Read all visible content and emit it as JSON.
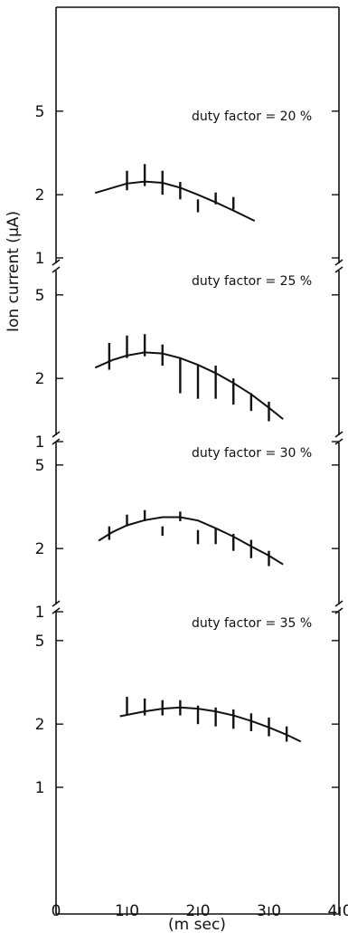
{
  "chart_data": {
    "type": "scatter",
    "ylabel": "Ion current (μA)",
    "xlabel": "(m sec)",
    "x_ticks": [
      "0",
      "1.0",
      "2.0",
      "3.0",
      "4.0"
    ],
    "xlim": [
      0,
      4.0
    ],
    "y_scale": "log",
    "ylim": [
      1,
      5
    ],
    "panels": [
      {
        "label": "duty factor = 20 %",
        "y_ticks": [
          "5",
          "2",
          "1"
        ],
        "points": [
          {
            "x": 1.0,
            "y_low": 2.1,
            "y_high": 2.6
          },
          {
            "x": 1.25,
            "y_low": 2.2,
            "y_high": 2.8
          },
          {
            "x": 1.5,
            "y_low": 2.0,
            "y_high": 2.6
          },
          {
            "x": 1.75,
            "y_low": 1.9,
            "y_high": 2.3
          },
          {
            "x": 2.0,
            "y_low": 1.65,
            "y_high": 1.9
          },
          {
            "x": 2.25,
            "y_low": 1.8,
            "y_high": 2.05
          },
          {
            "x": 2.5,
            "y_low": 1.7,
            "y_high": 1.95
          }
        ],
        "fit": [
          {
            "x": 0.55,
            "y": 2.04
          },
          {
            "x": 0.8,
            "y": 2.16
          },
          {
            "x": 1.0,
            "y": 2.26
          },
          {
            "x": 1.25,
            "y": 2.31
          },
          {
            "x": 1.5,
            "y": 2.28
          },
          {
            "x": 1.75,
            "y": 2.16
          },
          {
            "x": 2.0,
            "y": 2.0
          },
          {
            "x": 2.25,
            "y": 1.84
          },
          {
            "x": 2.5,
            "y": 1.68
          },
          {
            "x": 2.8,
            "y": 1.5
          }
        ]
      },
      {
        "label": "duty factor = 25 %",
        "y_ticks": [
          "5",
          "2",
          "1"
        ],
        "points": [
          {
            "x": 0.75,
            "y_low": 2.2,
            "y_high": 2.95
          },
          {
            "x": 1.0,
            "y_low": 2.5,
            "y_high": 3.2
          },
          {
            "x": 1.25,
            "y_low": 2.55,
            "y_high": 3.25
          },
          {
            "x": 1.5,
            "y_low": 2.3,
            "y_high": 2.9
          },
          {
            "x": 1.75,
            "y_low": 1.7,
            "y_high": 2.5
          },
          {
            "x": 2.0,
            "y_low": 1.6,
            "y_high": 2.3
          },
          {
            "x": 2.25,
            "y_low": 1.6,
            "y_high": 2.3
          },
          {
            "x": 2.5,
            "y_low": 1.5,
            "y_high": 2.0
          },
          {
            "x": 2.75,
            "y_low": 1.4,
            "y_high": 1.7
          },
          {
            "x": 3.0,
            "y_low": 1.25,
            "y_high": 1.55
          }
        ],
        "fit": [
          {
            "x": 0.55,
            "y": 2.25
          },
          {
            "x": 0.8,
            "y": 2.45
          },
          {
            "x": 1.0,
            "y": 2.57
          },
          {
            "x": 1.25,
            "y": 2.66
          },
          {
            "x": 1.5,
            "y": 2.63
          },
          {
            "x": 1.75,
            "y": 2.5
          },
          {
            "x": 2.0,
            "y": 2.32
          },
          {
            "x": 2.25,
            "y": 2.12
          },
          {
            "x": 2.5,
            "y": 1.9
          },
          {
            "x": 2.75,
            "y": 1.68
          },
          {
            "x": 3.0,
            "y": 1.45
          },
          {
            "x": 3.2,
            "y": 1.28
          }
        ]
      },
      {
        "label": "duty factor = 30 %",
        "y_ticks": [
          "5",
          "2",
          "1"
        ],
        "points": [
          {
            "x": 0.75,
            "y_low": 2.2,
            "y_high": 2.55
          },
          {
            "x": 1.0,
            "y_low": 2.55,
            "y_high": 2.9
          },
          {
            "x": 1.25,
            "y_low": 2.7,
            "y_high": 3.05
          },
          {
            "x": 1.5,
            "y_low": 2.3,
            "y_high": 2.55
          },
          {
            "x": 1.75,
            "y_low": 2.7,
            "y_high": 3.0
          },
          {
            "x": 2.0,
            "y_low": 2.1,
            "y_high": 2.45
          },
          {
            "x": 2.25,
            "y_low": 2.1,
            "y_high": 2.5
          },
          {
            "x": 2.5,
            "y_low": 1.95,
            "y_high": 2.35
          },
          {
            "x": 2.75,
            "y_low": 1.8,
            "y_high": 2.2
          },
          {
            "x": 3.0,
            "y_low": 1.65,
            "y_high": 1.95
          }
        ],
        "fit": [
          {
            "x": 0.6,
            "y": 2.18
          },
          {
            "x": 0.8,
            "y": 2.4
          },
          {
            "x": 1.0,
            "y": 2.58
          },
          {
            "x": 1.25,
            "y": 2.73
          },
          {
            "x": 1.5,
            "y": 2.82
          },
          {
            "x": 1.75,
            "y": 2.82
          },
          {
            "x": 2.0,
            "y": 2.72
          },
          {
            "x": 2.25,
            "y": 2.5
          },
          {
            "x": 2.5,
            "y": 2.28
          },
          {
            "x": 2.75,
            "y": 2.05
          },
          {
            "x": 3.0,
            "y": 1.85
          },
          {
            "x": 3.2,
            "y": 1.68
          }
        ]
      },
      {
        "label": "duty factor = 35 %",
        "y_ticks": [
          "5",
          "2",
          "1"
        ],
        "points": [
          {
            "x": 1.0,
            "y_low": 2.2,
            "y_high": 2.7
          },
          {
            "x": 1.25,
            "y_low": 2.2,
            "y_high": 2.65
          },
          {
            "x": 1.5,
            "y_low": 2.2,
            "y_high": 2.6
          },
          {
            "x": 1.75,
            "y_low": 2.2,
            "y_high": 2.6
          },
          {
            "x": 2.0,
            "y_low": 2.0,
            "y_high": 2.45
          },
          {
            "x": 2.25,
            "y_low": 1.95,
            "y_high": 2.4
          },
          {
            "x": 2.5,
            "y_low": 1.9,
            "y_high": 2.35
          },
          {
            "x": 2.75,
            "y_low": 1.85,
            "y_high": 2.25
          },
          {
            "x": 3.0,
            "y_low": 1.75,
            "y_high": 2.15
          },
          {
            "x": 3.25,
            "y_low": 1.65,
            "y_high": 1.95
          }
        ],
        "fit": [
          {
            "x": 0.9,
            "y": 2.18
          },
          {
            "x": 1.25,
            "y": 2.3
          },
          {
            "x": 1.5,
            "y": 2.37
          },
          {
            "x": 1.75,
            "y": 2.4
          },
          {
            "x": 2.0,
            "y": 2.37
          },
          {
            "x": 2.25,
            "y": 2.3
          },
          {
            "x": 2.5,
            "y": 2.2
          },
          {
            "x": 2.75,
            "y": 2.07
          },
          {
            "x": 3.0,
            "y": 1.93
          },
          {
            "x": 3.25,
            "y": 1.78
          },
          {
            "x": 3.45,
            "y": 1.65
          }
        ]
      }
    ]
  }
}
